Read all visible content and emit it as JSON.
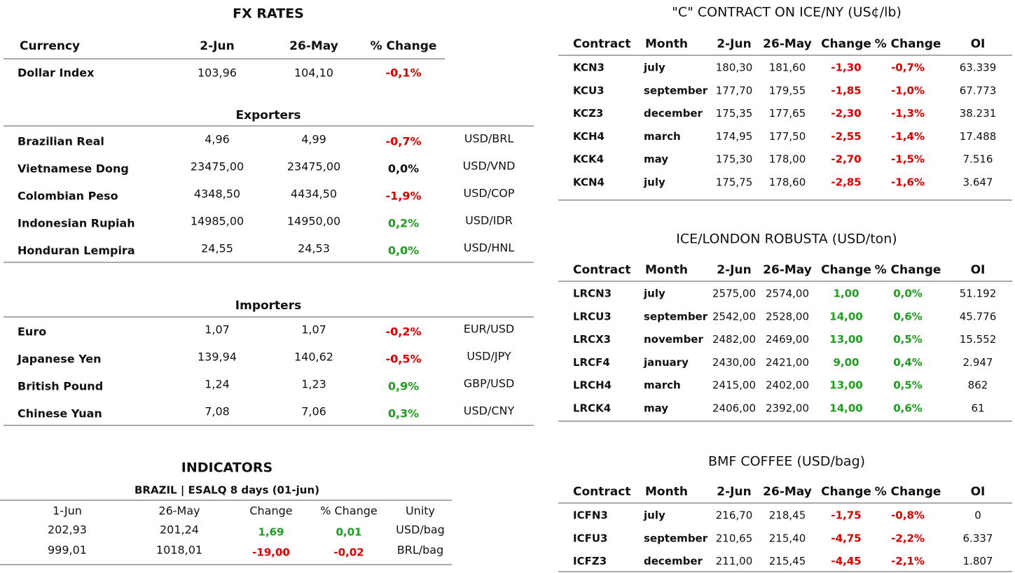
{
  "fx_rates": {
    "title": "FX RATES",
    "header": [
      "Currency",
      "2-Jun",
      "26-May",
      "% Change"
    ],
    "dollar_row": [
      "Dollar Index",
      "103,96",
      "104,10",
      "-0,1%"
    ],
    "dollar_color": "#e00000",
    "exporters": {
      "title": "Exporters",
      "rows": [
        [
          "Brazilian Real",
          "4,96",
          "4,99",
          "-0,7%",
          "USD/BRL"
        ],
        [
          "Vietnamese Dong",
          "23475,00",
          "23475,00",
          "0,0%",
          "USD/VND"
        ],
        [
          "Colombian Peso",
          "4348,50",
          "4434,50",
          "-1,9%",
          "USD/COP"
        ],
        [
          "Indonesian Rupiah",
          "14985,00",
          "14950,00",
          "0,2%",
          "USD/IDR"
        ],
        [
          "Honduran Lempira",
          "24,55",
          "24,53",
          "0,0%",
          "USD/HNL"
        ]
      ],
      "change_colors": [
        "#e00000",
        "#111111",
        "#e00000",
        "#1e9e1e",
        "#1e9e1e"
      ]
    },
    "importers": {
      "title": "Importers",
      "rows": [
        [
          "Euro",
          "1,07",
          "1,07",
          "-0,2%",
          "EUR/USD"
        ],
        [
          "Japanese Yen",
          "139,94",
          "140,62",
          "-0,5%",
          "USD/JPY"
        ],
        [
          "British Pound",
          "1,24",
          "1,23",
          "0,9%",
          "GBP/USD"
        ],
        [
          "Chinese Yuan",
          "7,08",
          "7,06",
          "0,3%",
          "USD/CNY"
        ]
      ],
      "change_colors": [
        "#e00000",
        "#e00000",
        "#1e9e1e",
        "#1e9e1e"
      ]
    }
  },
  "indicators": {
    "title": "INDICATORS",
    "subtitle": "BRAZIL | ESALQ 8 days (01-jun)",
    "header": [
      "1-Jun",
      "26-May",
      "Change",
      "% Change",
      "Unity"
    ],
    "rows": [
      [
        "202,93",
        "201,24",
        "1,69",
        "0,01",
        "USD/bag"
      ],
      [
        "999,01",
        "1018,01",
        "-19,00",
        "-0,02",
        "BRL/bag"
      ]
    ],
    "change_colors": [
      "#1e9e1e",
      "#e00000"
    ]
  },
  "c_contract": {
    "title": "\"C\" CONTRACT ON ICE/NY (US¢/lb)",
    "header": [
      "Contract",
      "Month",
      "2-Jun",
      "26-May",
      "Change",
      "% Change",
      "OI"
    ],
    "rows": [
      [
        "KCN3",
        "july",
        "180,30",
        "181,60",
        "-1,30",
        "-0,7%",
        "63.339"
      ],
      [
        "KCU3",
        "september",
        "177,70",
        "179,55",
        "-1,85",
        "-1,0%",
        "67.773"
      ],
      [
        "KCZ3",
        "december",
        "175,35",
        "177,65",
        "-2,30",
        "-1,3%",
        "38.231"
      ],
      [
        "KCH4",
        "march",
        "174,95",
        "177,50",
        "-2,55",
        "-1,4%",
        "17.488"
      ],
      [
        "KCK4",
        "may",
        "175,30",
        "178,00",
        "-2,70",
        "-1,5%",
        "7.516"
      ],
      [
        "KCN4",
        "july",
        "175,75",
        "178,60",
        "-2,85",
        "-1,6%",
        "3.647"
      ]
    ],
    "change_colors": [
      "#e00000",
      "#e00000",
      "#e00000",
      "#e00000",
      "#e00000",
      "#e00000"
    ]
  },
  "robusta": {
    "title": "ICE/LONDON ROBUSTA (USD/ton)",
    "header": [
      "Contract",
      "Month",
      "2-Jun",
      "26-May",
      "Change",
      "% Change",
      "OI"
    ],
    "rows": [
      [
        "LRCN3",
        "july",
        "2575,00",
        "2574,00",
        "1,00",
        "0,0%",
        "51.192"
      ],
      [
        "LRCU3",
        "september",
        "2542,00",
        "2528,00",
        "14,00",
        "0,6%",
        "45.776"
      ],
      [
        "LRCX3",
        "november",
        "2482,00",
        "2469,00",
        "13,00",
        "0,5%",
        "15.552"
      ],
      [
        "LRCF4",
        "january",
        "2430,00",
        "2421,00",
        "9,00",
        "0,4%",
        "2.947"
      ],
      [
        "LRCH4",
        "march",
        "2415,00",
        "2402,00",
        "13,00",
        "0,5%",
        "862"
      ],
      [
        "LRCK4",
        "may",
        "2406,00",
        "2392,00",
        "14,00",
        "0,6%",
        "61"
      ]
    ],
    "change_colors": [
      "#1e9e1e",
      "#1e9e1e",
      "#1e9e1e",
      "#1e9e1e",
      "#1e9e1e",
      "#1e9e1e"
    ]
  },
  "bmf": {
    "title": "BMF COFFEE (USD/bag)",
    "header": [
      "Contract",
      "Month",
      "2-Jun",
      "26-May",
      "Change",
      "% Change",
      "OI"
    ],
    "rows": [
      [
        "ICFN3",
        "july",
        "216,70",
        "218,45",
        "-1,75",
        "-0,8%",
        "0"
      ],
      [
        "ICFU3",
        "september",
        "210,65",
        "215,40",
        "-4,75",
        "-2,2%",
        "6.337"
      ],
      [
        "ICFZ3",
        "december",
        "211,00",
        "215,45",
        "-4,45",
        "-2,1%",
        "1.807"
      ]
    ],
    "change_colors": [
      "#e00000",
      "#e00000",
      "#e00000"
    ]
  }
}
